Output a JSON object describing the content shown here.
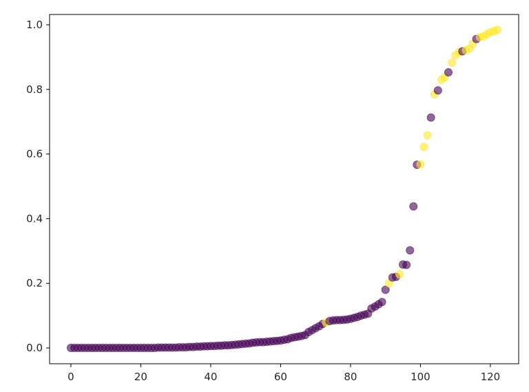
{
  "colors": {
    "class_0": "#440154",
    "class_1": "#fde725",
    "axis": "#000000",
    "text": "#262626"
  },
  "chart_data": {
    "type": "scatter",
    "title": "",
    "xlabel": "",
    "ylabel": "",
    "xlim": [
      -6.1,
      128.1
    ],
    "ylim": [
      -0.049,
      1.032
    ],
    "grid": false,
    "legend": "none",
    "marker_alpha": 0.6,
    "x_ticks": [
      0,
      20,
      40,
      60,
      80,
      100,
      120
    ],
    "x_tick_labels": [
      "0",
      "20",
      "40",
      "60",
      "80",
      "100",
      "120"
    ],
    "y_ticks": [
      0.0,
      0.2,
      0.4,
      0.6,
      0.8,
      1.0
    ],
    "y_tick_labels": [
      "0.0",
      "0.2",
      "0.4",
      "0.6",
      "0.8",
      "1.0"
    ],
    "points": [
      {
        "x": 0,
        "y": 0.0,
        "c": 0
      },
      {
        "x": 1,
        "y": 0.0,
        "c": 0
      },
      {
        "x": 2,
        "y": 0.0,
        "c": 0
      },
      {
        "x": 3,
        "y": 0.0,
        "c": 0
      },
      {
        "x": 4,
        "y": 0.0,
        "c": 0
      },
      {
        "x": 5,
        "y": 0.0,
        "c": 0
      },
      {
        "x": 6,
        "y": 0.0,
        "c": 0
      },
      {
        "x": 7,
        "y": 0.0,
        "c": 0
      },
      {
        "x": 8,
        "y": 0.0,
        "c": 0
      },
      {
        "x": 9,
        "y": 0.0,
        "c": 0
      },
      {
        "x": 10,
        "y": 0.0,
        "c": 0
      },
      {
        "x": 11,
        "y": 0.0,
        "c": 0
      },
      {
        "x": 12,
        "y": 0.0,
        "c": 0
      },
      {
        "x": 13,
        "y": 0.0,
        "c": 0
      },
      {
        "x": 14,
        "y": 0.0,
        "c": 0
      },
      {
        "x": 15,
        "y": 0.0,
        "c": 0
      },
      {
        "x": 16,
        "y": 0.0,
        "c": 0
      },
      {
        "x": 17,
        "y": 0.0,
        "c": 0
      },
      {
        "x": 18,
        "y": 0.0,
        "c": 0
      },
      {
        "x": 19,
        "y": 0.0,
        "c": 0
      },
      {
        "x": 20,
        "y": 0.0,
        "c": 0
      },
      {
        "x": 21,
        "y": 0.0,
        "c": 0
      },
      {
        "x": 22,
        "y": 0.0,
        "c": 0
      },
      {
        "x": 23,
        "y": 0.0,
        "c": 0
      },
      {
        "x": 24,
        "y": 0.0,
        "c": 0
      },
      {
        "x": 25,
        "y": 0.001,
        "c": 0
      },
      {
        "x": 26,
        "y": 0.001,
        "c": 0
      },
      {
        "x": 27,
        "y": 0.001,
        "c": 0
      },
      {
        "x": 28,
        "y": 0.001,
        "c": 0
      },
      {
        "x": 29,
        "y": 0.001,
        "c": 0
      },
      {
        "x": 30,
        "y": 0.001,
        "c": 0
      },
      {
        "x": 31,
        "y": 0.002,
        "c": 0
      },
      {
        "x": 32,
        "y": 0.002,
        "c": 0
      },
      {
        "x": 33,
        "y": 0.002,
        "c": 0
      },
      {
        "x": 34,
        "y": 0.003,
        "c": 0
      },
      {
        "x": 35,
        "y": 0.003,
        "c": 0
      },
      {
        "x": 36,
        "y": 0.004,
        "c": 0
      },
      {
        "x": 37,
        "y": 0.004,
        "c": 0
      },
      {
        "x": 38,
        "y": 0.005,
        "c": 0
      },
      {
        "x": 39,
        "y": 0.005,
        "c": 0
      },
      {
        "x": 40,
        "y": 0.006,
        "c": 0
      },
      {
        "x": 41,
        "y": 0.006,
        "c": 0
      },
      {
        "x": 42,
        "y": 0.007,
        "c": 0
      },
      {
        "x": 43,
        "y": 0.007,
        "c": 0
      },
      {
        "x": 44,
        "y": 0.008,
        "c": 0
      },
      {
        "x": 45,
        "y": 0.008,
        "c": 0
      },
      {
        "x": 46,
        "y": 0.009,
        "c": 0
      },
      {
        "x": 47,
        "y": 0.01,
        "c": 0
      },
      {
        "x": 48,
        "y": 0.011,
        "c": 0
      },
      {
        "x": 49,
        "y": 0.012,
        "c": 0
      },
      {
        "x": 50,
        "y": 0.013,
        "c": 0
      },
      {
        "x": 51,
        "y": 0.014,
        "c": 0
      },
      {
        "x": 52,
        "y": 0.016,
        "c": 0
      },
      {
        "x": 53,
        "y": 0.017,
        "c": 0
      },
      {
        "x": 54,
        "y": 0.018,
        "c": 0
      },
      {
        "x": 55,
        "y": 0.018,
        "c": 0
      },
      {
        "x": 56,
        "y": 0.019,
        "c": 0
      },
      {
        "x": 57,
        "y": 0.02,
        "c": 0
      },
      {
        "x": 58,
        "y": 0.021,
        "c": 0
      },
      {
        "x": 59,
        "y": 0.022,
        "c": 0
      },
      {
        "x": 60,
        "y": 0.023,
        "c": 0
      },
      {
        "x": 61,
        "y": 0.025,
        "c": 0
      },
      {
        "x": 62,
        "y": 0.027,
        "c": 0
      },
      {
        "x": 63,
        "y": 0.031,
        "c": 0
      },
      {
        "x": 64,
        "y": 0.033,
        "c": 0
      },
      {
        "x": 65,
        "y": 0.035,
        "c": 0
      },
      {
        "x": 66,
        "y": 0.037,
        "c": 0
      },
      {
        "x": 67,
        "y": 0.04,
        "c": 0
      },
      {
        "x": 68,
        "y": 0.049,
        "c": 0
      },
      {
        "x": 69,
        "y": 0.055,
        "c": 0
      },
      {
        "x": 70,
        "y": 0.061,
        "c": 0
      },
      {
        "x": 71,
        "y": 0.067,
        "c": 0
      },
      {
        "x": 72,
        "y": 0.074,
        "c": 0
      },
      {
        "x": 73,
        "y": 0.079,
        "c": 1
      },
      {
        "x": 74,
        "y": 0.083,
        "c": 0
      },
      {
        "x": 75,
        "y": 0.085,
        "c": 0
      },
      {
        "x": 76,
        "y": 0.086,
        "c": 0
      },
      {
        "x": 77,
        "y": 0.086,
        "c": 0
      },
      {
        "x": 78,
        "y": 0.087,
        "c": 0
      },
      {
        "x": 79,
        "y": 0.088,
        "c": 0
      },
      {
        "x": 80,
        "y": 0.09,
        "c": 0
      },
      {
        "x": 81,
        "y": 0.093,
        "c": 0
      },
      {
        "x": 82,
        "y": 0.096,
        "c": 0
      },
      {
        "x": 83,
        "y": 0.1,
        "c": 0
      },
      {
        "x": 84,
        "y": 0.103,
        "c": 0
      },
      {
        "x": 85,
        "y": 0.106,
        "c": 0
      },
      {
        "x": 86,
        "y": 0.122,
        "c": 0
      },
      {
        "x": 87,
        "y": 0.128,
        "c": 0
      },
      {
        "x": 88,
        "y": 0.135,
        "c": 0
      },
      {
        "x": 89,
        "y": 0.142,
        "c": 0
      },
      {
        "x": 90,
        "y": 0.18,
        "c": 0
      },
      {
        "x": 91,
        "y": 0.2,
        "c": 1
      },
      {
        "x": 92,
        "y": 0.218,
        "c": 0
      },
      {
        "x": 93,
        "y": 0.22,
        "c": 0
      },
      {
        "x": 94,
        "y": 0.228,
        "c": 1
      },
      {
        "x": 95,
        "y": 0.258,
        "c": 0
      },
      {
        "x": 96,
        "y": 0.257,
        "c": 0
      },
      {
        "x": 97,
        "y": 0.302,
        "c": 0
      },
      {
        "x": 98,
        "y": 0.438,
        "c": 0
      },
      {
        "x": 99,
        "y": 0.567,
        "c": 0
      },
      {
        "x": 100,
        "y": 0.568,
        "c": 1
      },
      {
        "x": 101,
        "y": 0.622,
        "c": 1
      },
      {
        "x": 102,
        "y": 0.658,
        "c": 1
      },
      {
        "x": 103,
        "y": 0.713,
        "c": 0
      },
      {
        "x": 104,
        "y": 0.785,
        "c": 1
      },
      {
        "x": 105,
        "y": 0.797,
        "c": 0
      },
      {
        "x": 106,
        "y": 0.83,
        "c": 1
      },
      {
        "x": 107,
        "y": 0.838,
        "c": 1
      },
      {
        "x": 108,
        "y": 0.853,
        "c": 0
      },
      {
        "x": 109,
        "y": 0.883,
        "c": 1
      },
      {
        "x": 110,
        "y": 0.905,
        "c": 1
      },
      {
        "x": 111,
        "y": 0.915,
        "c": 1
      },
      {
        "x": 112,
        "y": 0.918,
        "c": 0
      },
      {
        "x": 113,
        "y": 0.921,
        "c": 1
      },
      {
        "x": 114,
        "y": 0.926,
        "c": 1
      },
      {
        "x": 115,
        "y": 0.941,
        "c": 1
      },
      {
        "x": 116,
        "y": 0.956,
        "c": 0
      },
      {
        "x": 117,
        "y": 0.962,
        "c": 1
      },
      {
        "x": 118,
        "y": 0.964,
        "c": 1
      },
      {
        "x": 119,
        "y": 0.971,
        "c": 1
      },
      {
        "x": 120,
        "y": 0.977,
        "c": 1
      },
      {
        "x": 121,
        "y": 0.98,
        "c": 1
      },
      {
        "x": 122,
        "y": 0.984,
        "c": 1
      }
    ]
  }
}
